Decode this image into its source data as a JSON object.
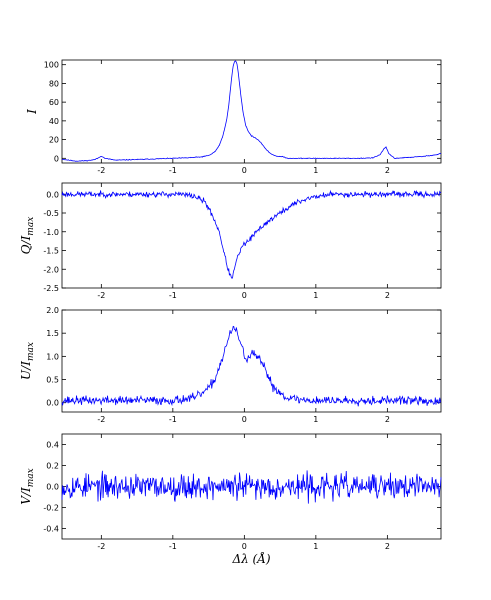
{
  "figure": {
    "xlabel": "Δλ (Å)",
    "line_color": "#0000ff"
  },
  "chart_data": [
    {
      "type": "line",
      "ylabel": "I",
      "xlim": [
        -2.55,
        2.75
      ],
      "ylim": [
        -5,
        105
      ],
      "xticks": [
        -2,
        -1,
        0,
        1,
        2
      ],
      "yticks": [
        0,
        20,
        40,
        60,
        80,
        100
      ],
      "xticklabels": [
        "-2",
        "-1",
        "0",
        "1",
        "2"
      ],
      "yticklabels": [
        "0",
        "20",
        "40",
        "60",
        "80",
        "100"
      ],
      "grid": false,
      "series": [
        {
          "noise": 0.3,
          "x": [
            -2.55,
            -2.45,
            -2.35,
            -2.2,
            -2.1,
            -2.05,
            -2.0,
            -1.95,
            -1.8,
            -1.6,
            -1.4,
            -1.2,
            -1.0,
            -0.8,
            -0.6,
            -0.5,
            -0.45,
            -0.4,
            -0.35,
            -0.3,
            -0.25,
            -0.22,
            -0.2,
            -0.18,
            -0.16,
            -0.14,
            -0.12,
            -0.1,
            -0.08,
            -0.05,
            -0.02,
            0.02,
            0.06,
            0.1,
            0.15,
            0.2,
            0.25,
            0.3,
            0.35,
            0.42,
            0.48,
            0.55,
            0.6,
            0.7,
            0.8,
            1.0,
            1.3,
            1.6,
            1.8,
            1.9,
            1.95,
            1.98,
            2.02,
            2.1,
            2.3,
            2.5,
            2.7,
            2.75
          ],
          "y": [
            -1,
            -2,
            -3,
            -2.5,
            -1.5,
            0,
            2.5,
            0,
            -2,
            -1.5,
            -1,
            -0.5,
            0,
            0.5,
            1.5,
            3,
            5,
            8,
            14,
            24,
            40,
            55,
            70,
            85,
            97,
            103,
            104,
            100,
            88,
            68,
            50,
            35,
            28,
            24,
            22,
            19,
            15,
            10,
            6,
            3,
            2,
            1.5,
            0,
            0,
            0,
            0,
            0,
            0,
            0.5,
            4,
            10,
            12,
            5,
            0,
            1,
            2,
            4,
            5.5
          ]
        }
      ]
    },
    {
      "type": "line",
      "ylabel": "Q/I_max",
      "xlim": [
        -2.55,
        2.75
      ],
      "ylim": [
        -2.5,
        0.3
      ],
      "xticks": [
        -2,
        -1,
        0,
        1,
        2
      ],
      "yticks": [
        0.0,
        -0.5,
        -1.0,
        -1.5,
        -2.0,
        -2.5
      ],
      "xticklabels": [
        "-2",
        "-1",
        "0",
        "1",
        "2"
      ],
      "yticklabels": [
        "0.0",
        "-0.5",
        "-1.0",
        "-1.5",
        "-2.0",
        "-2.5"
      ],
      "grid": false,
      "series": [
        {
          "noise": 0.055,
          "x": [
            -2.55,
            -1.2,
            -0.9,
            -0.7,
            -0.55,
            -0.45,
            -0.35,
            -0.28,
            -0.22,
            -0.18,
            -0.15,
            -0.12,
            -0.08,
            -0.03,
            0.02,
            0.08,
            0.15,
            0.25,
            0.35,
            0.5,
            0.7,
            0.9,
            1.2,
            2.75
          ],
          "y": [
            0.0,
            0.0,
            0.0,
            -0.05,
            -0.2,
            -0.55,
            -1.0,
            -1.6,
            -2.05,
            -2.25,
            -2.1,
            -1.85,
            -1.6,
            -1.4,
            -1.3,
            -1.2,
            -1.05,
            -0.85,
            -0.7,
            -0.5,
            -0.25,
            -0.1,
            0.0,
            0.0
          ]
        }
      ]
    },
    {
      "type": "line",
      "ylabel": "U/I_max",
      "xlim": [
        -2.55,
        2.75
      ],
      "ylim": [
        -0.2,
        2.0
      ],
      "xticks": [
        -2,
        -1,
        0,
        1,
        2
      ],
      "yticks": [
        0.0,
        0.5,
        1.0,
        1.5,
        2.0
      ],
      "xticklabels": [
        "-2",
        "-1",
        "0",
        "1",
        "2"
      ],
      "yticklabels": [
        "0.0",
        "0.5",
        "1.0",
        "1.5",
        "2.0"
      ],
      "grid": false,
      "series": [
        {
          "noise": 0.07,
          "x": [
            -2.55,
            -1.0,
            -0.7,
            -0.5,
            -0.4,
            -0.3,
            -0.22,
            -0.15,
            -0.1,
            -0.05,
            0.0,
            0.05,
            0.1,
            0.15,
            0.2,
            0.3,
            0.4,
            0.55,
            0.7,
            0.9,
            2.0,
            2.4,
            2.75
          ],
          "y": [
            0.05,
            0.05,
            0.1,
            0.3,
            0.55,
            1.0,
            1.4,
            1.62,
            1.5,
            1.3,
            1.0,
            0.95,
            1.05,
            1.02,
            0.95,
            0.7,
            0.35,
            0.15,
            0.08,
            0.05,
            0.05,
            0.05,
            0.0
          ]
        }
      ]
    },
    {
      "type": "line",
      "ylabel": "V/I_max",
      "xlim": [
        -2.55,
        2.75
      ],
      "ylim": [
        -0.5,
        0.5
      ],
      "xticks": [
        -2,
        -1,
        0,
        1,
        2
      ],
      "yticks": [
        -0.4,
        -0.2,
        0.0,
        0.2,
        0.4
      ],
      "xticklabels": [
        "-2",
        "-1",
        "0",
        "1",
        "2"
      ],
      "yticklabels": [
        "-0.4",
        "-0.2",
        "0.0",
        "0.2",
        "0.4"
      ],
      "grid": false,
      "series": [
        {
          "noise": 0.09,
          "x": [
            -2.55,
            2.75
          ],
          "y": [
            0.0,
            0.0
          ]
        }
      ]
    }
  ]
}
